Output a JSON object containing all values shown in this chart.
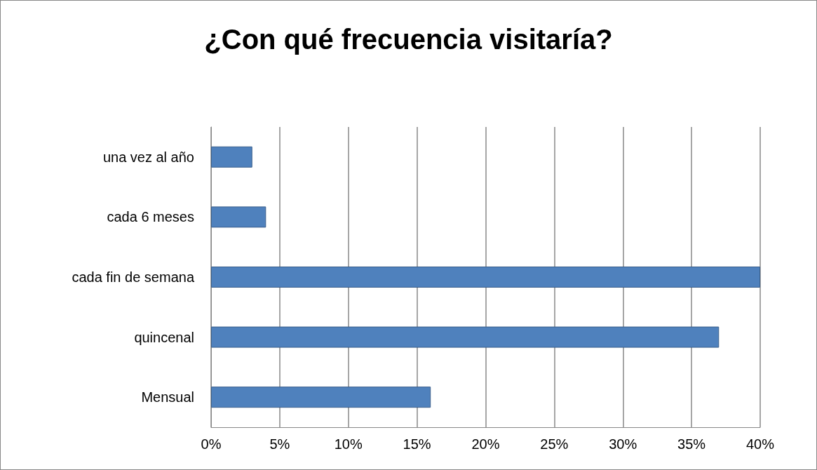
{
  "chart_data": {
    "type": "bar",
    "orientation": "horizontal",
    "title": "¿Con qué frecuencia visitaría?",
    "categories": [
      "una vez al año",
      "cada 6 meses",
      "cada fin de semana",
      "quincenal",
      "Mensual"
    ],
    "values": [
      3,
      4,
      40,
      37,
      16
    ],
    "color": "#4f81bd",
    "xlim": [
      0,
      40
    ],
    "xticks": [
      {
        "value": 0,
        "label": "0%"
      },
      {
        "value": 5,
        "label": "5%"
      },
      {
        "value": 10,
        "label": "10%"
      },
      {
        "value": 15,
        "label": "15%"
      },
      {
        "value": 20,
        "label": "20%"
      },
      {
        "value": 25,
        "label": "25%"
      },
      {
        "value": 30,
        "label": "30%"
      },
      {
        "value": 35,
        "label": "35%"
      },
      {
        "value": 40,
        "label": "40%"
      }
    ],
    "grid": "x"
  }
}
